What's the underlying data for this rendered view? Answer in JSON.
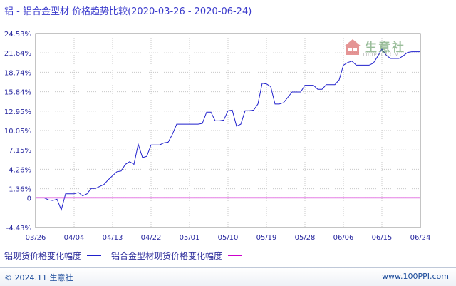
{
  "title": "铝 - 铝合金型材 价格趋势比较(2020-03-26 - 2020-06-24)",
  "watermark": {
    "brand": "生意社",
    "url": "100PPI.COM"
  },
  "footer": {
    "left": "© 2024.11 生意社",
    "right": "www.100PPI.com"
  },
  "legend": [
    {
      "label": "铝现货价格变化幅度",
      "color": "#2020cc"
    },
    {
      "label": "铝合金型材现货价格变化幅度",
      "color": "#cc00cc"
    }
  ],
  "chart_data": {
    "type": "line",
    "title": "铝 - 铝合金型材 价格趋势比较(2020-03-26 - 2020-06-24)",
    "y_ticks": [
      "24.53%",
      "21.64%",
      "18.74%",
      "15.84%",
      "12.95%",
      "10.05%",
      "7.15%",
      "4.26%",
      "1.36%",
      "0",
      "-4.43%"
    ],
    "y_tick_values": [
      24.53,
      21.64,
      18.74,
      15.84,
      12.95,
      10.05,
      7.15,
      4.26,
      1.36,
      0,
      -4.43
    ],
    "ylim": [
      -4.43,
      24.53
    ],
    "x_ticks": [
      "03/26",
      "04/04",
      "04/13",
      "04/22",
      "05/01",
      "05/10",
      "05/19",
      "05/28",
      "06/06",
      "06/15",
      "06/24"
    ],
    "x_tick_days": [
      0,
      9,
      18,
      27,
      36,
      45,
      54,
      63,
      72,
      81,
      90
    ],
    "x_range_days": [
      0,
      90
    ],
    "grid": true,
    "series": [
      {
        "name": "铝现货价格变化幅度",
        "color": "#2020cc",
        "points": [
          [
            0,
            0
          ],
          [
            2,
            0
          ],
          [
            3,
            -0.3
          ],
          [
            4,
            -0.4
          ],
          [
            5,
            -0.2
          ],
          [
            6,
            -1.8
          ],
          [
            7,
            0.6
          ],
          [
            8,
            0.6
          ],
          [
            9,
            0.6
          ],
          [
            10,
            0.8
          ],
          [
            11,
            0.3
          ],
          [
            12,
            0.6
          ],
          [
            13,
            1.4
          ],
          [
            14,
            1.4
          ],
          [
            15,
            1.7
          ],
          [
            16,
            2.0
          ],
          [
            17,
            2.7
          ],
          [
            18,
            3.3
          ],
          [
            19,
            3.9
          ],
          [
            20,
            4.0
          ],
          [
            21,
            5.0
          ],
          [
            22,
            5.4
          ],
          [
            23,
            5.0
          ],
          [
            24,
            8.0
          ],
          [
            25,
            6.0
          ],
          [
            26,
            6.2
          ],
          [
            27,
            7.9
          ],
          [
            28,
            7.9
          ],
          [
            29,
            7.9
          ],
          [
            30,
            8.2
          ],
          [
            31,
            8.3
          ],
          [
            32,
            9.5
          ],
          [
            33,
            11.0
          ],
          [
            34,
            11.0
          ],
          [
            35,
            11.0
          ],
          [
            36,
            11.0
          ],
          [
            37,
            11.0
          ],
          [
            38,
            11.0
          ],
          [
            39,
            11.1
          ],
          [
            40,
            12.8
          ],
          [
            41,
            12.8
          ],
          [
            42,
            11.5
          ],
          [
            43,
            11.5
          ],
          [
            44,
            11.6
          ],
          [
            45,
            13.0
          ],
          [
            46,
            13.1
          ],
          [
            47,
            10.7
          ],
          [
            48,
            11.0
          ],
          [
            49,
            13.0
          ],
          [
            50,
            13.0
          ],
          [
            51,
            13.1
          ],
          [
            52,
            14.0
          ],
          [
            53,
            17.1
          ],
          [
            54,
            17.0
          ],
          [
            55,
            16.6
          ],
          [
            56,
            14.0
          ],
          [
            57,
            14.0
          ],
          [
            58,
            14.2
          ],
          [
            59,
            15.0
          ],
          [
            60,
            15.8
          ],
          [
            61,
            15.8
          ],
          [
            62,
            15.8
          ],
          [
            63,
            16.8
          ],
          [
            64,
            16.8
          ],
          [
            65,
            16.8
          ],
          [
            66,
            16.2
          ],
          [
            67,
            16.2
          ],
          [
            68,
            16.9
          ],
          [
            69,
            16.9
          ],
          [
            70,
            16.9
          ],
          [
            71,
            17.6
          ],
          [
            72,
            19.8
          ],
          [
            73,
            20.2
          ],
          [
            74,
            20.4
          ],
          [
            75,
            19.8
          ],
          [
            76,
            19.8
          ],
          [
            77,
            19.8
          ],
          [
            78,
            19.8
          ],
          [
            79,
            20.1
          ],
          [
            80,
            21.1
          ],
          [
            81,
            22.2
          ],
          [
            82,
            21.3
          ],
          [
            83,
            20.8
          ],
          [
            84,
            20.8
          ],
          [
            85,
            20.8
          ],
          [
            86,
            21.2
          ],
          [
            87,
            21.7
          ],
          [
            88,
            21.8
          ],
          [
            89,
            21.8
          ],
          [
            90,
            21.8
          ]
        ]
      },
      {
        "name": "铝合金型材现货价格变化幅度",
        "color": "#cc00cc",
        "points": [
          [
            0,
            0
          ],
          [
            90,
            0
          ]
        ]
      }
    ]
  }
}
